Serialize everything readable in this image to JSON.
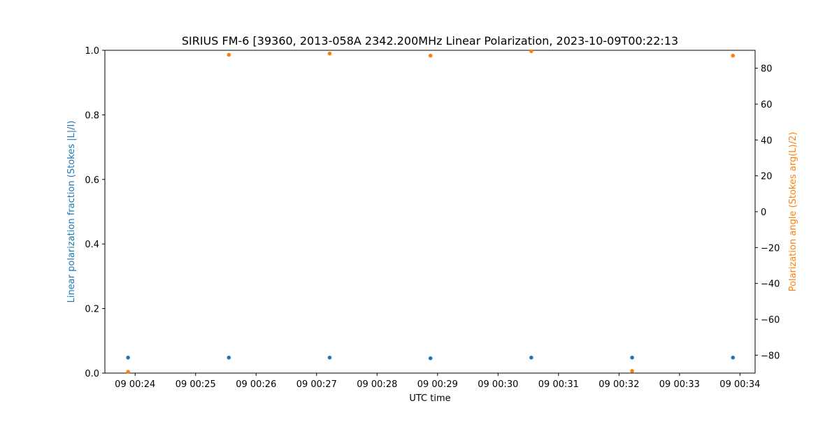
{
  "chart_data": {
    "type": "scatter",
    "title": "SIRIUS FM-6 [39360, 2013-058A 2342.200MHz Linear Polarization, 2023-10-09T00:22:13",
    "xlabel": "UTC time",
    "ylabel_left": "Linear polarization fraction (Stokes |L|/I)",
    "ylabel_right": "Polarization angle (Stokes arg(L)/2)",
    "x_ticks": [
      "09 00:24",
      "09 00:25",
      "09 00:26",
      "09 00:27",
      "09 00:28",
      "09 00:29",
      "09 00:30",
      "09 00:31",
      "09 00:32",
      "09 00:33",
      "09 00:34"
    ],
    "x_range": [
      "2023-10-09T00:23:30",
      "2023-10-09T00:34:15"
    ],
    "ylim_left": [
      0,
      1
    ],
    "ylim_right": [
      -90,
      90
    ],
    "yticks_left": [
      "0.0",
      "0.2",
      "0.4",
      "0.6",
      "0.8",
      "1.0"
    ],
    "yticks_right": [
      "−80",
      "−60",
      "−40",
      "−20",
      "0",
      "20",
      "40",
      "60",
      "80"
    ],
    "series": [
      {
        "axis": "left",
        "color": "#1f77b4",
        "x": [
          "2023-10-09T00:23:53",
          "2023-10-09T00:25:33",
          "2023-10-09T00:27:13",
          "2023-10-09T00:28:53",
          "2023-10-09T00:30:33",
          "2023-10-09T00:32:13",
          "2023-10-09T00:33:53"
        ],
        "values": [
          0.048,
          0.048,
          0.048,
          0.046,
          0.048,
          0.048,
          0.048
        ]
      },
      {
        "axis": "right",
        "color": "#ff7f0e",
        "x": [
          "2023-10-09T00:23:53",
          "2023-10-09T00:25:33",
          "2023-10-09T00:27:13",
          "2023-10-09T00:28:53",
          "2023-10-09T00:30:33",
          "2023-10-09T00:32:13",
          "2023-10-09T00:33:53"
        ],
        "values": [
          -89.3,
          87.5,
          88.2,
          87.0,
          89.5,
          -88.8,
          87.0
        ]
      }
    ],
    "grid": false
  }
}
